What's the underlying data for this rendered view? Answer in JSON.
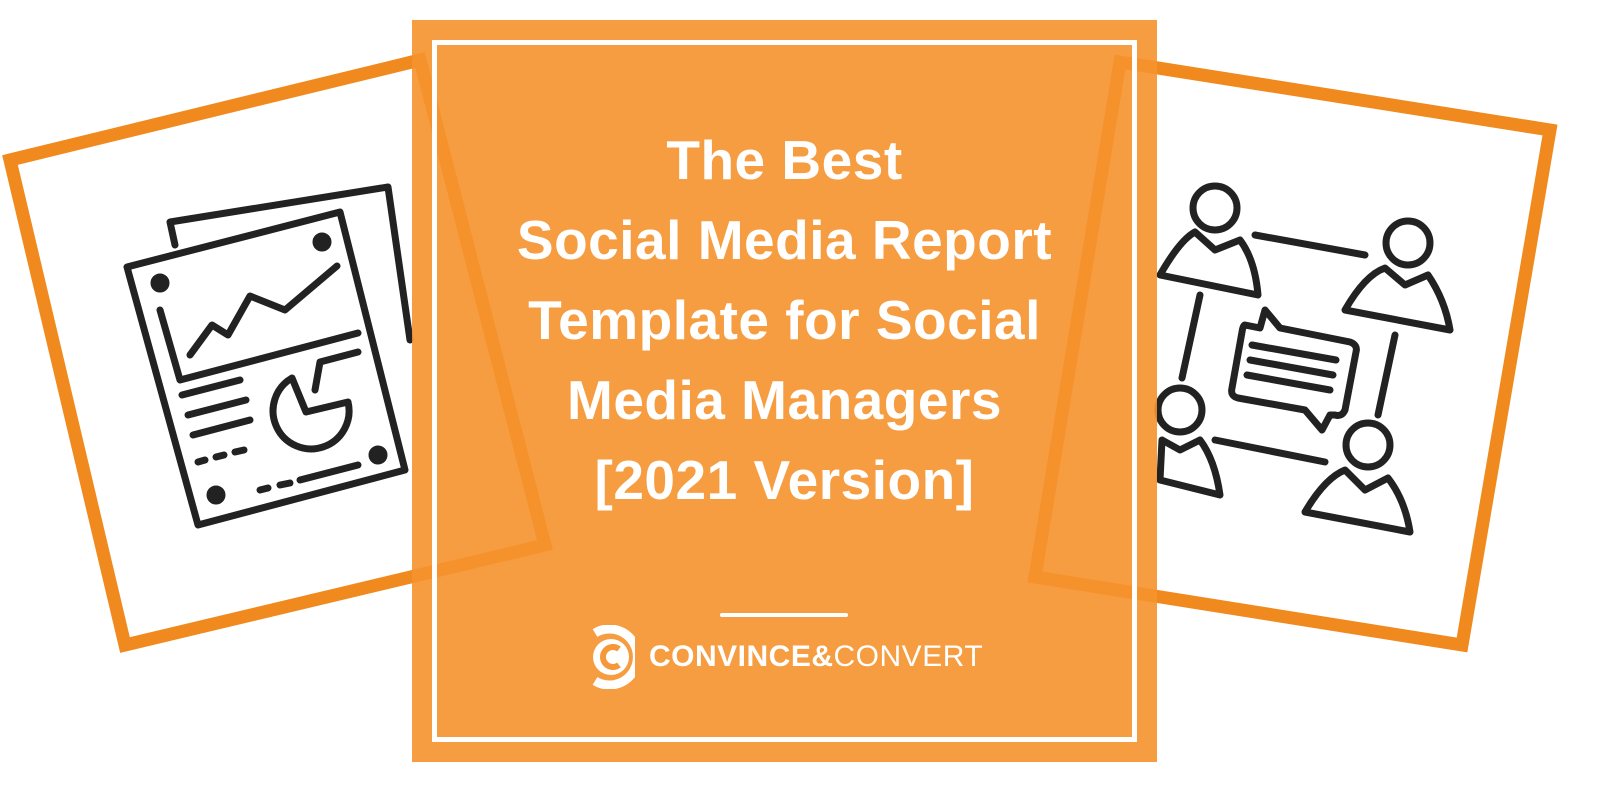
{
  "colors": {
    "accent": "#F5983A",
    "frame": "#F08A1E",
    "ink": "#222222"
  },
  "title_lines": [
    "The Best",
    "Social Media Report",
    "Template for Social",
    "Media Managers",
    "[2021 Version]"
  ],
  "logo": {
    "brand_bold": "CONVINCE&",
    "brand_light": "CONVERT",
    "icon": "c-logo-icon"
  },
  "icons": {
    "left": "report-chart-icon",
    "right": "team-discussion-icon"
  }
}
